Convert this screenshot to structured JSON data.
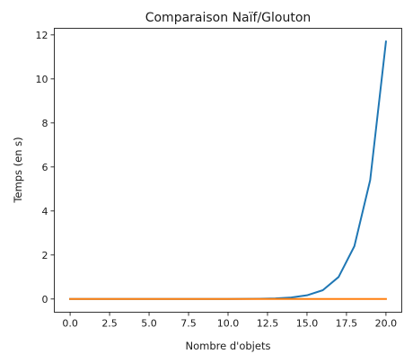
{
  "chart_data": {
    "type": "line",
    "title": "Comparaison Naïf/Glouton",
    "xlabel": "Nombre d'objets",
    "ylabel": "Temps (en s)",
    "xlim": [
      -1,
      21
    ],
    "ylim": [
      -0.6,
      12.3
    ],
    "xticks": [
      0,
      2.5,
      5,
      7.5,
      10,
      12.5,
      15,
      17.5,
      20
    ],
    "xtick_labels": [
      "0.0",
      "2.5",
      "5.0",
      "7.5",
      "10.0",
      "12.5",
      "15.0",
      "17.5",
      "20.0"
    ],
    "yticks": [
      0,
      2,
      4,
      6,
      8,
      10,
      12
    ],
    "ytick_labels": [
      "0",
      "2",
      "4",
      "6",
      "8",
      "10",
      "12"
    ],
    "grid": false,
    "x": [
      0,
      1,
      2,
      3,
      4,
      5,
      6,
      7,
      8,
      9,
      10,
      11,
      12,
      13,
      14,
      15,
      16,
      17,
      18,
      19,
      20
    ],
    "series": [
      {
        "color": "#1f77b4",
        "values": [
          0,
          0,
          0,
          0,
          0,
          0,
          0,
          0,
          0,
          0.001,
          0.002,
          0.005,
          0.01,
          0.03,
          0.07,
          0.17,
          0.4,
          1.0,
          2.4,
          5.4,
          11.7
        ]
      },
      {
        "color": "#ff7f0e",
        "values": [
          0,
          0,
          0,
          0,
          0,
          0,
          0,
          0,
          0,
          0,
          0,
          0,
          0,
          0,
          0,
          0,
          0,
          0,
          0,
          0,
          0
        ]
      }
    ]
  }
}
